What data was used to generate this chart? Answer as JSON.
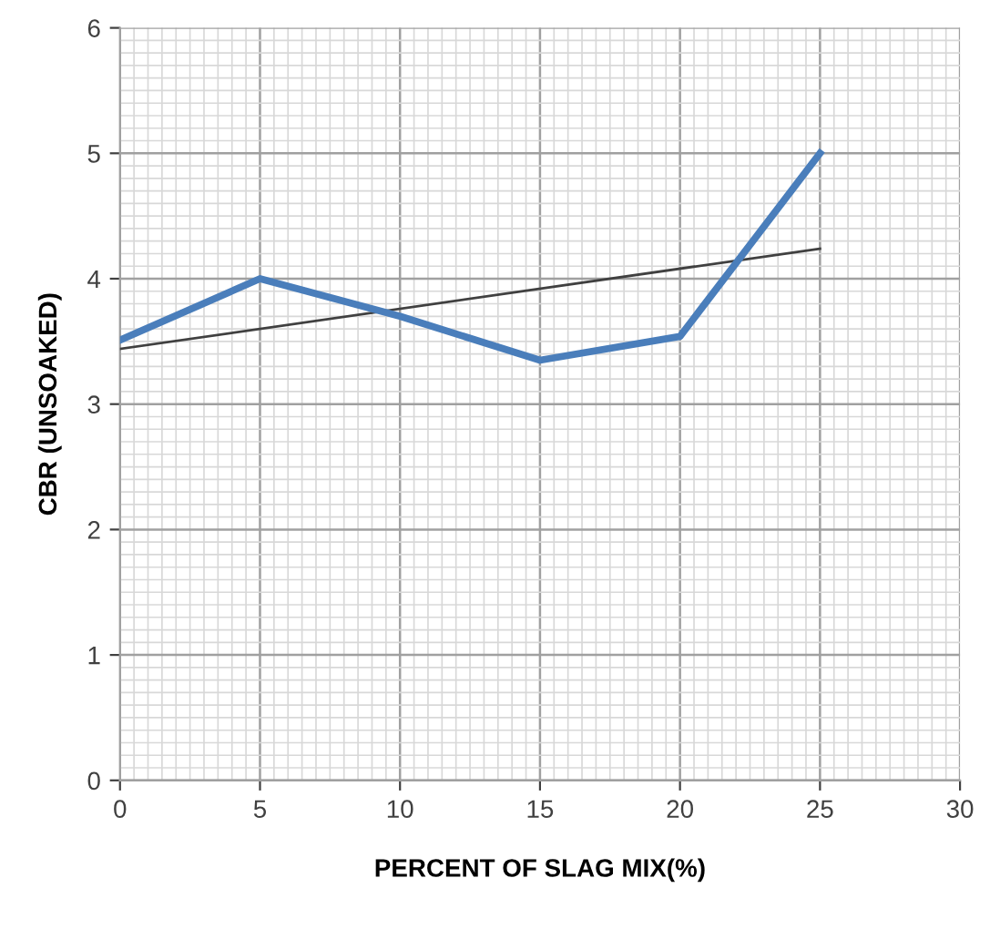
{
  "chart_data": {
    "type": "line",
    "xlabel": "PERCENT OF SLAG MIX(%)",
    "ylabel": "CBR (UNSOAKED)",
    "xlim": [
      0,
      30
    ],
    "xticks": [
      0,
      5,
      10,
      15,
      20,
      25,
      30
    ],
    "ylim": [
      0,
      6
    ],
    "yticks": [
      0,
      1,
      2,
      3,
      4,
      5,
      6
    ],
    "grid": true,
    "marker": "none",
    "series": [
      {
        "color": "#4a7ebb",
        "x": [
          0,
          5,
          10,
          15,
          20,
          25
        ],
        "values": [
          3.51,
          4.0,
          3.7,
          3.35,
          3.54,
          5.0
        ]
      },
      {
        "type": "line",
        "color": "#404040",
        "x": [
          0,
          25
        ],
        "values": [
          3.44,
          4.24
        ]
      }
    ]
  }
}
